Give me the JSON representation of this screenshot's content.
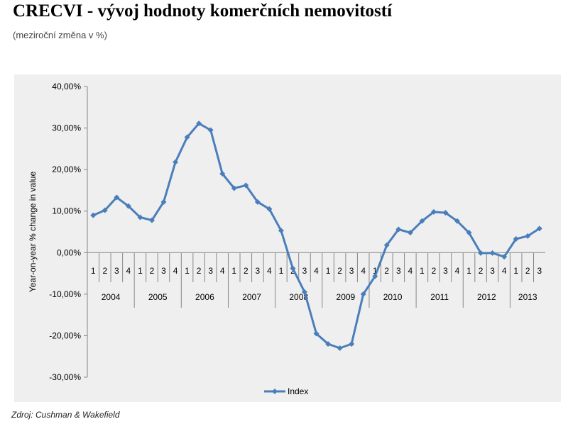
{
  "page": {
    "title": "CRECVI - vývoj hodnoty komerčních nemovitostí",
    "subtitle": "(meziroční změna v %)",
    "source": "Zdroj: Cushman & Wakefield"
  },
  "colors": {
    "series": "#4a7ebb",
    "axis": "#868686",
    "plot_background": "#efefef"
  },
  "chart_data": {
    "type": "line",
    "title": "",
    "xlabel": "",
    "ylabel": "Year-on-year % change in value",
    "ylim": [
      -30,
      40
    ],
    "y_ticks": [
      40,
      30,
      20,
      10,
      0,
      -10,
      -20,
      -30
    ],
    "y_tick_labels": [
      "40,00%",
      "30,00%",
      "20,00%",
      "10,00%",
      "0,00%",
      "-10,00%",
      "-20,00%",
      "-30,00%"
    ],
    "grid": false,
    "legend": "bottom",
    "years": [
      {
        "label": "2004",
        "quarters": [
          "1",
          "2",
          "3",
          "4"
        ]
      },
      {
        "label": "2005",
        "quarters": [
          "1",
          "2",
          "3",
          "4"
        ]
      },
      {
        "label": "2006",
        "quarters": [
          "1",
          "2",
          "3",
          "4"
        ]
      },
      {
        "label": "2007",
        "quarters": [
          "1",
          "2",
          "3",
          "4"
        ]
      },
      {
        "label": "2008",
        "quarters": [
          "1",
          "2",
          "3",
          "4"
        ]
      },
      {
        "label": "2009",
        "quarters": [
          "1",
          "2",
          "3",
          "4"
        ]
      },
      {
        "label": "2010",
        "quarters": [
          "1",
          "2",
          "3",
          "4"
        ]
      },
      {
        "label": "2011",
        "quarters": [
          "1",
          "2",
          "3",
          "4"
        ]
      },
      {
        "label": "2012",
        "quarters": [
          "1",
          "2",
          "3",
          "4"
        ]
      },
      {
        "label": "2013",
        "quarters": [
          "1",
          "2",
          "3"
        ]
      }
    ],
    "series": [
      {
        "name": "Index",
        "values": [
          9.0,
          10.2,
          13.3,
          11.2,
          8.5,
          7.8,
          12.2,
          21.8,
          27.8,
          31.1,
          29.5,
          19.0,
          15.5,
          16.2,
          12.2,
          10.5,
          5.3,
          -3.8,
          -9.5,
          -19.5,
          -22.0,
          -23.0,
          -22.0,
          -10.0,
          -5.7,
          1.8,
          5.6,
          4.8,
          7.6,
          9.8,
          9.6,
          7.6,
          4.8,
          -0.1,
          -0.1,
          -1.0,
          3.3,
          4.0,
          5.8
        ]
      }
    ]
  }
}
